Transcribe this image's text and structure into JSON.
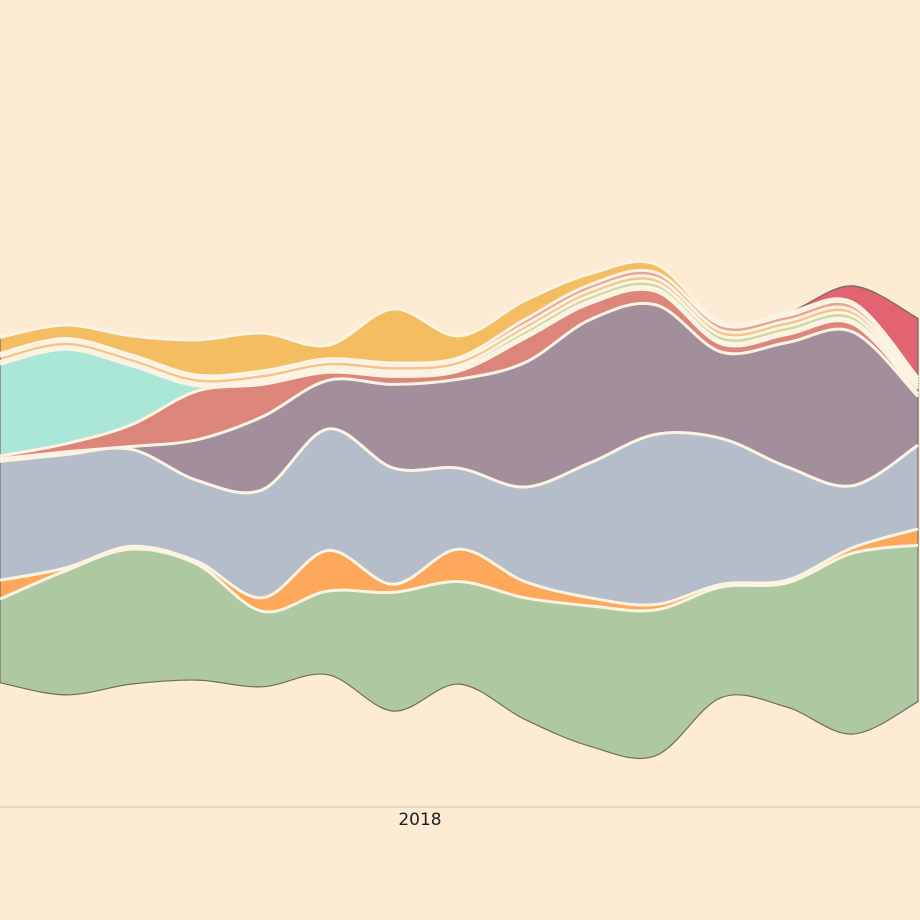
{
  "chart_data": {
    "type": "area",
    "subtype": "streamgraph",
    "title": "",
    "xlabel": "",
    "ylabel": "",
    "x_tick_labels": [
      "2018"
    ],
    "grid": false,
    "legend": "none",
    "background": "#feebd3",
    "colors": [
      "#aec9a2",
      "#fda85a",
      "#b6bdca",
      "#a38e9b",
      "#dc857b",
      "#abe7d6",
      "#cbd9a0",
      "#f6c18a",
      "#e8a38f",
      "#f5bd62",
      "#e26470"
    ],
    "x": [
      0,
      1,
      2,
      3,
      4,
      5,
      6,
      7,
      8,
      9,
      10,
      11,
      12,
      13,
      14
    ],
    "series": [
      {
        "values": [
          3.1,
          4.6,
          5.0,
          4.3,
          2.8,
          3.1,
          4.4,
          3.8,
          4.5,
          5.2,
          5.4,
          4.1,
          4.6,
          6.7,
          5.8
        ]
      },
      {
        "values": [
          0.7,
          0.1,
          0.1,
          0.1,
          0.5,
          1.5,
          0.3,
          1.2,
          0.6,
          0.3,
          0.2,
          0.1,
          0.1,
          0.2,
          0.6
        ]
      },
      {
        "values": [
          4.4,
          4.2,
          3.6,
          3.0,
          4.0,
          4.5,
          4.3,
          3.0,
          3.5,
          5.0,
          6.3,
          5.4,
          4.2,
          2.3,
          3.1
        ]
      },
      {
        "values": [
          0.1,
          0.1,
          0.1,
          1.5,
          2.7,
          1.8,
          3.1,
          3.3,
          4.6,
          5.3,
          4.8,
          3.2,
          4.6,
          5.7,
          1.8
        ]
      },
      {
        "values": [
          0.1,
          0.3,
          0.8,
          1.8,
          1.2,
          0.3,
          0.3,
          0.3,
          0.9,
          0.6,
          0.5,
          0.3,
          0.3,
          0.3,
          0.1
        ]
      },
      {
        "values": [
          3.4,
          3.5,
          2.2,
          0.2,
          0.1,
          0.1,
          0.1,
          0.1,
          0.1,
          0.1,
          0.1,
          0.1,
          0.1,
          0.1,
          0.2
        ]
      },
      {
        "values": [
          0.1,
          0.1,
          0.1,
          0.1,
          0.1,
          0.1,
          0.1,
          0.1,
          0.2,
          0.2,
          0.2,
          0.2,
          0.2,
          0.2,
          0.1
        ]
      },
      {
        "values": [
          0.2,
          0.2,
          0.2,
          0.2,
          0.2,
          0.2,
          0.2,
          0.2,
          0.2,
          0.2,
          0.2,
          0.2,
          0.2,
          0.2,
          0.1
        ]
      },
      {
        "values": [
          0.1,
          0.1,
          0.1,
          0.1,
          0.1,
          0.1,
          0.1,
          0.1,
          0.2,
          0.2,
          0.2,
          0.2,
          0.2,
          0.2,
          0.1
        ]
      },
      {
        "values": [
          0.6,
          0.5,
          0.7,
          1.3,
          1.4,
          0.5,
          2.0,
          0.8,
          0.7,
          0.4,
          0.3,
          0.1,
          0.1,
          0.1,
          0.1
        ]
      },
      {
        "values": [
          0.0,
          0.0,
          0.0,
          0.0,
          0.0,
          0.0,
          0.0,
          0.0,
          0.0,
          0.0,
          0.0,
          0.0,
          0.0,
          0.6,
          2.2
        ]
      }
    ]
  }
}
